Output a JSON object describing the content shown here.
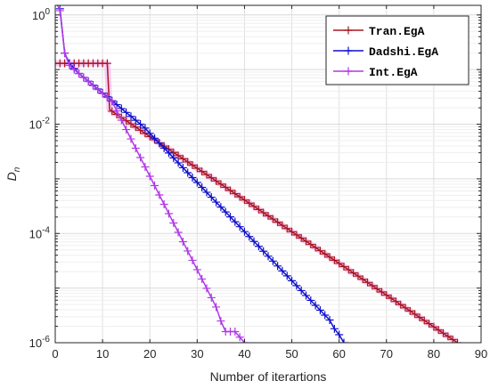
{
  "chart_data": {
    "type": "line",
    "title": "",
    "xlabel": "Number of iterartions",
    "ylabel": "D",
    "ylabel_sub": "n",
    "xlim": [
      0,
      90
    ],
    "ylim": [
      1e-06,
      1.5
    ],
    "yscale": "log",
    "grid": true,
    "legend_position": "top-right",
    "x_ticks": [
      0,
      10,
      20,
      30,
      40,
      50,
      60,
      70,
      80,
      90
    ],
    "y_ticks": [
      {
        "value": 1,
        "base": "10",
        "exp": "0"
      },
      {
        "value": 0.01,
        "base": "10",
        "exp": "-2"
      },
      {
        "value": 0.0001,
        "base": "10",
        "exp": "-4"
      },
      {
        "value": 1e-06,
        "base": "10",
        "exp": "-6"
      }
    ],
    "series": [
      {
        "name": "Tran.EgA",
        "color": "#a8161e",
        "marker": "+",
        "points": [
          [
            0,
            0.13
          ],
          [
            1,
            0.13
          ],
          [
            2,
            0.13
          ],
          [
            3,
            0.13
          ],
          [
            4,
            0.13
          ],
          [
            5,
            0.13
          ],
          [
            6,
            0.13
          ],
          [
            7,
            0.13
          ],
          [
            8,
            0.13
          ],
          [
            9,
            0.13
          ],
          [
            10,
            0.13
          ],
          [
            11,
            0.13
          ],
          [
            11.5,
            0.0185
          ],
          [
            85,
            1e-06
          ]
        ]
      },
      {
        "name": "Dadshi.EgA",
        "color": "#1010cc",
        "marker": "+",
        "points": [
          [
            1,
            1.3
          ],
          [
            2,
            0.2
          ],
          [
            3,
            0.13
          ],
          [
            5,
            0.085
          ],
          [
            19,
            0.0085
          ],
          [
            20,
            0.0068
          ],
          [
            58,
            2.6e-06
          ],
          [
            59,
            1.8e-06
          ],
          [
            60,
            1.4e-06
          ],
          [
            61,
            1e-06
          ]
        ]
      },
      {
        "name": "Int.EgA",
        "color": "#b038e6",
        "marker": "+",
        "points": [
          [
            0.5,
            1.5
          ],
          [
            1,
            1.2
          ],
          [
            2,
            0.2
          ],
          [
            3,
            0.12
          ],
          [
            4,
            0.1
          ],
          [
            12,
            0.026
          ],
          [
            34,
            4.5e-06
          ],
          [
            35,
            2.5e-06
          ],
          [
            36,
            1.6e-06
          ],
          [
            38,
            1.6e-06
          ],
          [
            40,
            1e-06
          ]
        ]
      }
    ]
  }
}
